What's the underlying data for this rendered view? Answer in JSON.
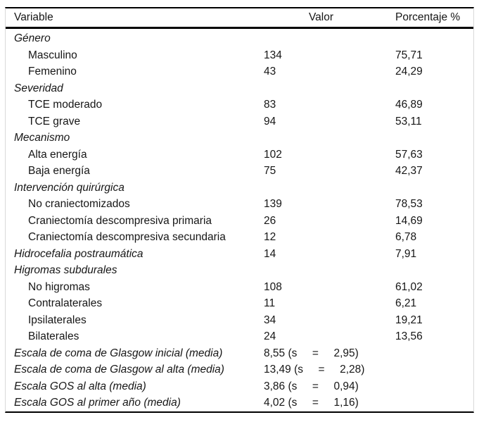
{
  "colors": {
    "rule": "#000000",
    "frame_edge": "#d8d8d8",
    "text": "#161616",
    "background": "#ffffff"
  },
  "table": {
    "headers": {
      "variable": "Variable",
      "valor": "Valor",
      "porcentaje": "Porcentaje %"
    },
    "rows": [
      {
        "label": "Género",
        "valor": "",
        "porcentaje": ""
      },
      {
        "label": "Masculino",
        "valor": "134",
        "porcentaje": "75,71"
      },
      {
        "label": "Femenino",
        "valor": "43",
        "porcentaje": "24,29"
      },
      {
        "label": "Severidad",
        "valor": "",
        "porcentaje": ""
      },
      {
        "label": "TCE moderado",
        "valor": "83",
        "porcentaje": "46,89"
      },
      {
        "label": "TCE grave",
        "valor": "94",
        "porcentaje": "53,11"
      },
      {
        "label": "Mecanismo",
        "valor": "",
        "porcentaje": ""
      },
      {
        "label": "Alta energía",
        "valor": "102",
        "porcentaje": "57,63"
      },
      {
        "label": "Baja energía",
        "valor": "75",
        "porcentaje": "42,37"
      },
      {
        "label": "Intervención quirúrgica",
        "valor": "",
        "porcentaje": ""
      },
      {
        "label": "No craniectomizados",
        "valor": "139",
        "porcentaje": "78,53"
      },
      {
        "label": "Craniectomía descompresiva primaria",
        "valor": "26",
        "porcentaje": "14,69"
      },
      {
        "label": "Craniectomía descompresiva secundaria",
        "valor": "12",
        "porcentaje": "6,78"
      },
      {
        "label": "Hidrocefalia postraumática",
        "valor": "14",
        "porcentaje": "7,91"
      },
      {
        "label": "Higromas subdurales",
        "valor": "",
        "porcentaje": ""
      },
      {
        "label": "No higromas",
        "valor": "108",
        "porcentaje": "61,02"
      },
      {
        "label": "Contralaterales",
        "valor": "11",
        "porcentaje": "6,21"
      },
      {
        "label": "Ipsilaterales",
        "valor": "34",
        "porcentaje": "19,21"
      },
      {
        "label": "Bilaterales",
        "valor": "24",
        "porcentaje": "13,56"
      },
      {
        "label": "Escala de coma de Glasgow inicial (media)",
        "valor": "8,55 (s     =     2,95)",
        "porcentaje": ""
      },
      {
        "label": "Escala de coma de Glasgow al alta (media)",
        "valor": "13,49 (s     =     2,28)",
        "porcentaje": ""
      },
      {
        "label": "Escala GOS al alta (media)",
        "valor": "3,86 (s     =     0,94)",
        "porcentaje": ""
      },
      {
        "label": "Escala GOS al primer año (media)",
        "valor": "4,02 (s     =     1,16)",
        "porcentaje": ""
      }
    ]
  }
}
